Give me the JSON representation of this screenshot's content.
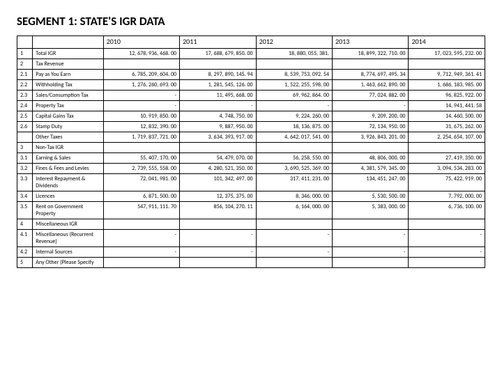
{
  "title": "SEGMENT 1: STATE'S IGR DATA",
  "table": {
    "years": [
      "2010",
      "2011",
      "2012",
      "2013",
      "2014"
    ],
    "rows": [
      {
        "id": "1",
        "label": "Total IGR",
        "values": [
          "12, 678, 936, 468. 00",
          "17, 688, 679, 850. 00",
          "18, 880, 055, 381.",
          "18, 899, 322, 710. 00",
          "17, 023, 595, 232. 00"
        ]
      },
      {
        "id": "2",
        "label": "Tax Revenue",
        "values": [
          "",
          "",
          "",
          "",
          ""
        ]
      },
      {
        "id": "2.1",
        "label": "Pay as You Earn",
        "values": [
          "6, 785, 209, 604. 00",
          "8, 297, 890, 145. 94",
          "8, 539, 753, 092. 54",
          "8, 774, 697, 495. 34",
          "9, 712, 949, 361. 41"
        ]
      },
      {
        "id": "2.2",
        "label": "Withholding Tax",
        "values": [
          "1, 276, 260, 693. 00",
          "1, 281, 545, 126. 00",
          "1, 522, 255, 598. 00",
          "1, 463, 662, 890. 00",
          "1, 686, 183, 985. 00"
        ]
      },
      {
        "id": "2.3",
        "label": "Sales/Consumption Tax",
        "values": [
          "-",
          "11, 495, 668. 00",
          "69, 962, 864. 00",
          "77, 024, 882. 00",
          "96, 825, 922. 00"
        ]
      },
      {
        "id": "2.4",
        "label": "Property Tax",
        "values": [
          "-",
          "-",
          "-",
          "-",
          "14, 941, 441. 58"
        ]
      },
      {
        "id": "2.5",
        "label": "Capital Gains Tax",
        "values": [
          "10, 919, 850. 00",
          "4, 748, 750. 00",
          "9, 224, 260. 00",
          "9, 209, 200. 00",
          "14, 460, 500. 00"
        ]
      },
      {
        "id": "2.6",
        "label": "Stamp Duty",
        "values": [
          "12, 832, 390. 00",
          "9, 887, 950. 00",
          "18, 136, 875. 00",
          "72, 134, 950. 00",
          "31, 675, 262. 00"
        ]
      },
      {
        "id": "",
        "label": "Other Taxes",
        "values": [
          "1, 719, 837, 721. 00",
          "3, 634, 393, 917. 00",
          "4, 642, 017, 541. 00",
          "3, 926, 843, 201. 00",
          "2, 254, 654, 107. 00"
        ]
      },
      {
        "id": "3",
        "label": "Non-Tax IGR",
        "values": [
          "",
          "",
          "",
          "",
          ""
        ]
      },
      {
        "id": "3.1",
        "label": "Earning & Sales",
        "values": [
          "55, 407, 170. 00",
          "54, 479, 070. 00",
          "56, 258, 550. 00",
          "48, 806, 000. 00",
          "27, 419, 350. 00"
        ]
      },
      {
        "id": "3.2",
        "label": "Fines & Fees and Levies",
        "values": [
          "2, 739, 555, 558. 00",
          "4, 280, 521, 350. 00",
          "3, 690, 525, 369. 00",
          "4, 381, 579, 345. 00",
          "3, 094, 534, 283. 00"
        ]
      },
      {
        "id": "3.3",
        "label": "Interest Repayment & Dividends",
        "values": [
          "72, 041, 981. 00",
          "101, 342, 497. 00",
          "317, 411, 231. 00",
          "134, 451, 247. 00",
          "75, 422, 919. 00"
        ]
      },
      {
        "id": "3.4",
        "label": "Licences",
        "values": [
          "6, 871, 500. 00",
          "12, 375, 375. 00",
          "8, 346, 000. 00",
          "5, 530, 500. 00",
          "7, 792, 000. 00"
        ]
      },
      {
        "id": "3.5",
        "label": "Rent on Government Property",
        "values": [
          "547, 911, 111. 70",
          "856, 104, 270. 11",
          "6, 164, 000. 00",
          "5, 383, 000. 00",
          "6, 736, 100. 00"
        ]
      },
      {
        "id": "4",
        "label": "Miscellaneous IGR",
        "values": [
          "",
          "",
          "",
          "",
          ""
        ]
      },
      {
        "id": "4.1",
        "label": "Miscellaneous (Recurrent Revenue)",
        "values": [
          "-",
          "-",
          "-",
          "-",
          "-"
        ]
      },
      {
        "id": "4.2",
        "label": "Internal Sources",
        "values": [
          "-",
          "-",
          "-",
          "-",
          "-"
        ]
      },
      {
        "id": "5",
        "label": "Any Other (Please Specify",
        "values": [
          "",
          "",
          "",
          "",
          ""
        ]
      }
    ]
  }
}
